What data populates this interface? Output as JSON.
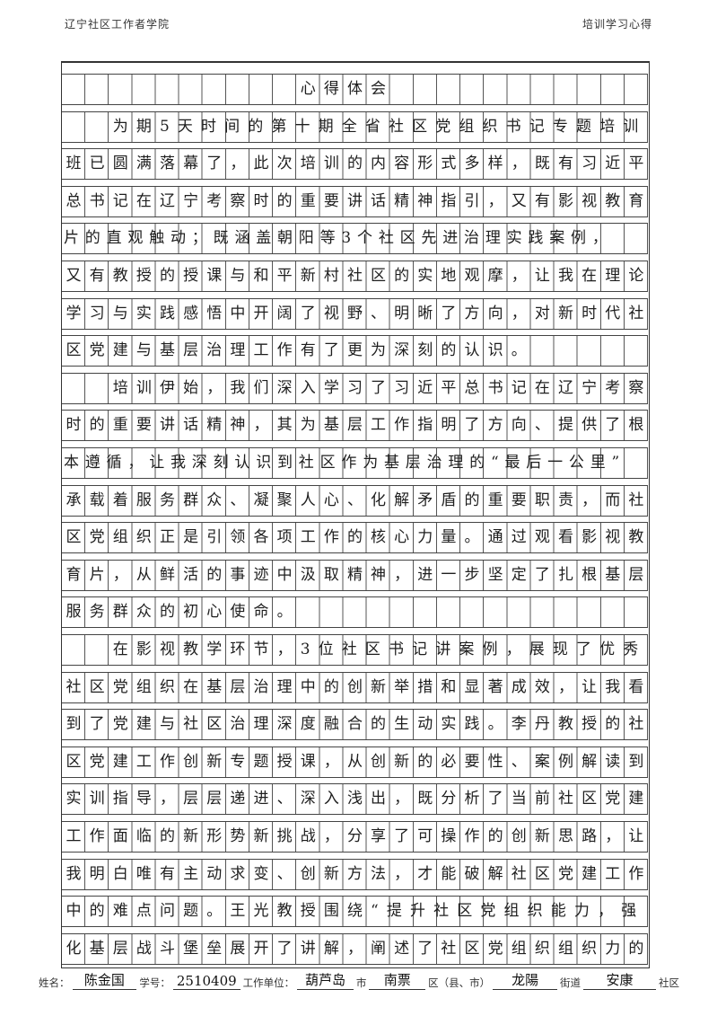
{
  "header": {
    "left": "辽宁社区工作者学院",
    "right": "培训学习心得"
  },
  "title_row": "　　　　　　　　　　心得体会",
  "lines": [
    "　　为期5天时间的第十期全省社区党组织书记专题培训",
    "班已圆满落幕了，此次培训的内容形式多样，既有习近平",
    "总书记在辽宁考察时的重要讲话精神指引，又有影视教育",
    "片的直观触动；既涵盖朝阳等3个社区先进治理实践案例，",
    "又有教授的授课与和平新村社区的实地观摩，让我在理论",
    "学习与实践感悟中开阔了视野、明晰了方向，对新时代社",
    "区党建与基层治理工作有了更为深刻的认识。",
    "　　培训伊始，我们深入学习了习近平总书记在辽宁考察",
    "时的重要讲话精神，其为基层工作指明了方向、提供了根",
    "本遵循，让我深刻认识到社区作为基层治理的“最后一公里”",
    "承载着服务群众、凝聚人心、化解矛盾的重要职责，而社",
    "区党组织正是引领各项工作的核心力量。通过观看影视教",
    "育片，从鲜活的事迹中汲取精神，进一步坚定了扎根基层",
    "服务群众的初心使命。",
    "　　在影视教学环节，3位社区书记讲案例，展现了优秀",
    "社区党组织在基层治理中的创新举措和显著成效，让我看",
    "到了党建与社区治理深度融合的生动实践。李丹教授的社",
    "区党建工作创新专题授课，从创新的必要性、案例解读到",
    "实训指导，层层递进、深入浅出，既分析了当前社区党建",
    "工作面临的新形势新挑战，分享了可操作的创新思路，让",
    "我明白唯有主动求变、创新方法，才能破解社区党建工作",
    "中的难点问题。王光教授围绕“提升社区党组织能力，强",
    "化基层战斗堡垒展开了讲解，阐述了社区党组织组织力的"
  ],
  "footer": {
    "name_label": "姓名：",
    "name": "陈金国",
    "id_label": "学号：",
    "id": "2510409",
    "unit_label": "工作单位：",
    "city": "葫芦岛",
    "city_label": "市",
    "district": "南票",
    "district_label": "区（县、市）",
    "street": "龙陽",
    "street_label": "街道",
    "community": "安康",
    "community_label": "社区"
  }
}
